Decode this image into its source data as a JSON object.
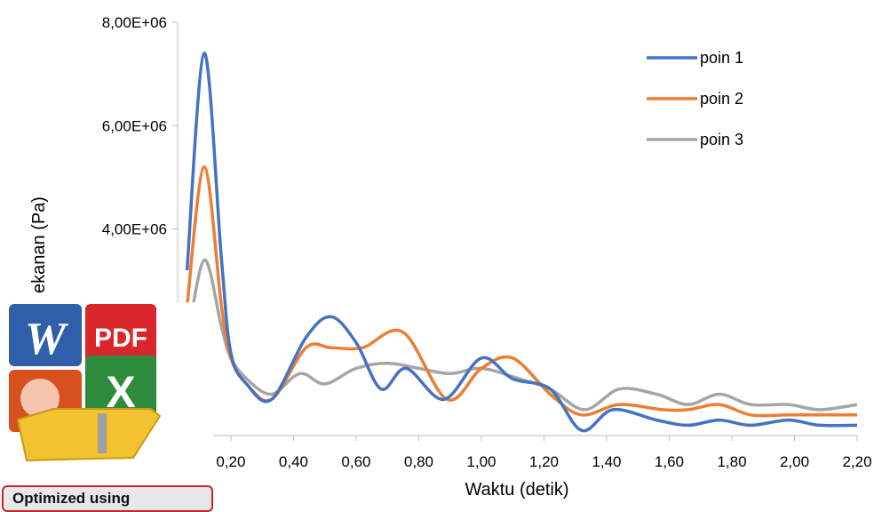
{
  "chart_data": {
    "type": "line",
    "title": "",
    "xlabel": "Waktu (detik)",
    "ylabel": "ekanan (Pa)",
    "xlim": [
      0.03,
      2.2
    ],
    "ylim": [
      0,
      8000000
    ],
    "x_ticks": [
      "0,20",
      "0,40",
      "0,60",
      "0,80",
      "1,00",
      "1,20",
      "1,40",
      "1,60",
      "1,80",
      "2,00",
      "2,20"
    ],
    "x_tick_values": [
      0.2,
      0.4,
      0.6,
      0.8,
      1.0,
      1.2,
      1.4,
      1.6,
      1.8,
      2.0,
      2.2
    ],
    "y_ticks": [
      "4,00E+06",
      "6,00E+06",
      "8,00E+06"
    ],
    "y_tick_values": [
      4000000,
      6000000,
      8000000
    ],
    "grid": false,
    "legend_position": "top-right",
    "series": [
      {
        "name": "poin 1",
        "color": "#4472C4",
        "points": [
          [
            0.06,
            3200000
          ],
          [
            0.115,
            7400000
          ],
          [
            0.17,
            3400000
          ],
          [
            0.2,
            1600000
          ],
          [
            0.25,
            1000000
          ],
          [
            0.33,
            700000
          ],
          [
            0.44,
            1900000
          ],
          [
            0.52,
            2300000
          ],
          [
            0.6,
            1800000
          ],
          [
            0.68,
            900000
          ],
          [
            0.76,
            1300000
          ],
          [
            0.88,
            700000
          ],
          [
            1.0,
            1500000
          ],
          [
            1.1,
            1100000
          ],
          [
            1.22,
            900000
          ],
          [
            1.32,
            100000
          ],
          [
            1.42,
            500000
          ],
          [
            1.56,
            300000
          ],
          [
            1.66,
            200000
          ],
          [
            1.76,
            300000
          ],
          [
            1.86,
            200000
          ],
          [
            1.98,
            300000
          ],
          [
            2.08,
            200000
          ],
          [
            2.2,
            200000
          ]
        ]
      },
      {
        "name": "poin 2",
        "color": "#ED7D31",
        "points": [
          [
            0.06,
            2500000
          ],
          [
            0.115,
            5200000
          ],
          [
            0.17,
            2500000
          ],
          [
            0.2,
            1500000
          ],
          [
            0.25,
            1000000
          ],
          [
            0.33,
            700000
          ],
          [
            0.44,
            1700000
          ],
          [
            0.52,
            1700000
          ],
          [
            0.62,
            1700000
          ],
          [
            0.75,
            2000000
          ],
          [
            0.89,
            700000
          ],
          [
            1.0,
            1300000
          ],
          [
            1.1,
            1500000
          ],
          [
            1.22,
            800000
          ],
          [
            1.32,
            400000
          ],
          [
            1.44,
            600000
          ],
          [
            1.58,
            500000
          ],
          [
            1.66,
            500000
          ],
          [
            1.76,
            600000
          ],
          [
            1.86,
            400000
          ],
          [
            1.98,
            400000
          ],
          [
            2.08,
            400000
          ],
          [
            2.2,
            400000
          ]
        ]
      },
      {
        "name": "poin 3",
        "color": "#A5A5A5",
        "points": [
          [
            0.06,
            1800000
          ],
          [
            0.115,
            3400000
          ],
          [
            0.17,
            2100000
          ],
          [
            0.2,
            1500000
          ],
          [
            0.25,
            1100000
          ],
          [
            0.33,
            800000
          ],
          [
            0.42,
            1200000
          ],
          [
            0.5,
            1000000
          ],
          [
            0.6,
            1300000
          ],
          [
            0.7,
            1400000
          ],
          [
            0.8,
            1300000
          ],
          [
            0.9,
            1200000
          ],
          [
            1.0,
            1300000
          ],
          [
            1.12,
            1100000
          ],
          [
            1.22,
            900000
          ],
          [
            1.33,
            500000
          ],
          [
            1.44,
            900000
          ],
          [
            1.56,
            800000
          ],
          [
            1.66,
            600000
          ],
          [
            1.76,
            800000
          ],
          [
            1.86,
            600000
          ],
          [
            1.98,
            600000
          ],
          [
            2.08,
            500000
          ],
          [
            2.2,
            600000
          ]
        ]
      }
    ]
  },
  "overlay": {
    "badge_text": "Optimized using",
    "logo_letters": {
      "word": "W",
      "pdf": "PDF",
      "excel": "X"
    }
  }
}
